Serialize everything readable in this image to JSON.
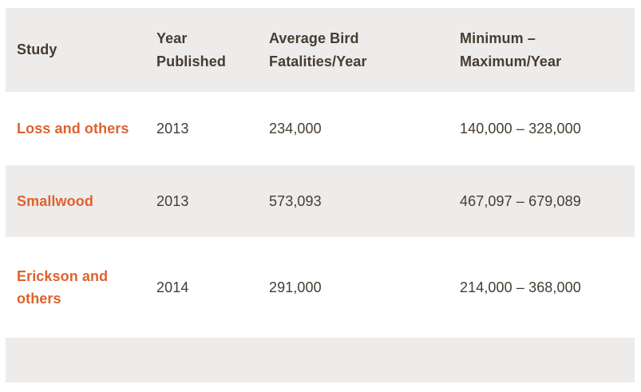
{
  "colors": {
    "row_stripe_bg": "#edeceb",
    "text_dark": "#463c32",
    "study_accent_orange": "#e0622e",
    "page_bg": "#ffffff"
  },
  "table": {
    "header": {
      "study": "Study",
      "year_published": "Year\nPublished",
      "average": "Average Bird\nFatalities/Year",
      "min_max": "Minimum –\nMaximum/Year"
    },
    "rows": [
      {
        "study": "Loss and others",
        "year_published": "2013",
        "average": "234,000",
        "min_max": "140,000 – 328,000"
      },
      {
        "study": "Smallwood",
        "year_published": "2013",
        "average": "573,093",
        "min_max": "467,097 – 679,089"
      },
      {
        "study": "Erickson and\nothers",
        "year_published": "2014",
        "average": "291,000",
        "min_max": "214,000 – 368,000"
      }
    ]
  },
  "chart_data": {
    "type": "table",
    "title": "",
    "columns": [
      "Study",
      "Year Published",
      "Average Bird Fatalities/Year",
      "Minimum – Maximum/Year"
    ],
    "rows": [
      [
        "Loss and others",
        "2013",
        "234,000",
        "140,000 – 328,000"
      ],
      [
        "Smallwood",
        "2013",
        "573,093",
        "467,097 – 679,089"
      ],
      [
        "Erickson and others",
        "2014",
        "291,000",
        "214,000 – 368,000"
      ]
    ]
  }
}
